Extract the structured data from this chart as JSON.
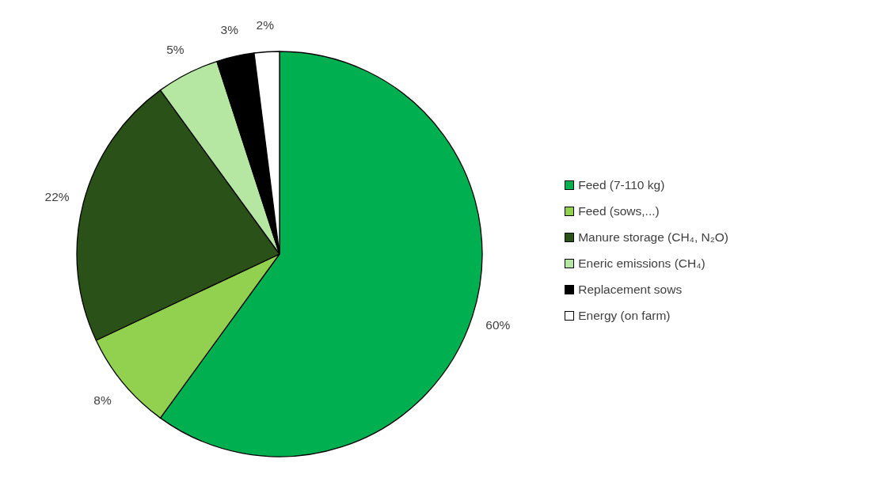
{
  "chart_data": {
    "type": "pie",
    "categories": [
      "Feed (7-110 kg)",
      "Feed (sows,...)",
      "Manure storage (CH₄, N₂O)",
      "Eneric emissions (CH₄)",
      "Replacement sows",
      "Energy (on farm)"
    ],
    "values": [
      60,
      8,
      22,
      5,
      3,
      2
    ],
    "colors": [
      "#00b050",
      "#92d050",
      "#2a5118",
      "#b5e6a2",
      "#000000",
      "#ffffff"
    ],
    "value_labels": [
      "60%",
      "8%",
      "22%",
      "5%",
      "3%",
      "2%"
    ],
    "legend": "right"
  }
}
